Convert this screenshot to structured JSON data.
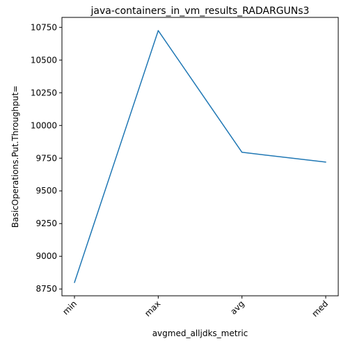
{
  "chart_data": {
    "type": "line",
    "title": "java-containers_in_vm_results_RADARGUNs3",
    "xlabel": "avgmed_alljdks_metric",
    "ylabel": "BasicOperations.Put.Throughput=",
    "categories": [
      "min",
      "max",
      "avg",
      "med"
    ],
    "series": [
      {
        "values": [
          8800,
          10725,
          9795,
          9720
        ],
        "color": "#1f77b4"
      }
    ],
    "ylim": [
      8698,
      10826
    ],
    "yticks": [
      8750,
      9000,
      9250,
      9500,
      9750,
      10000,
      10250,
      10500,
      10750
    ],
    "grid": false
  }
}
